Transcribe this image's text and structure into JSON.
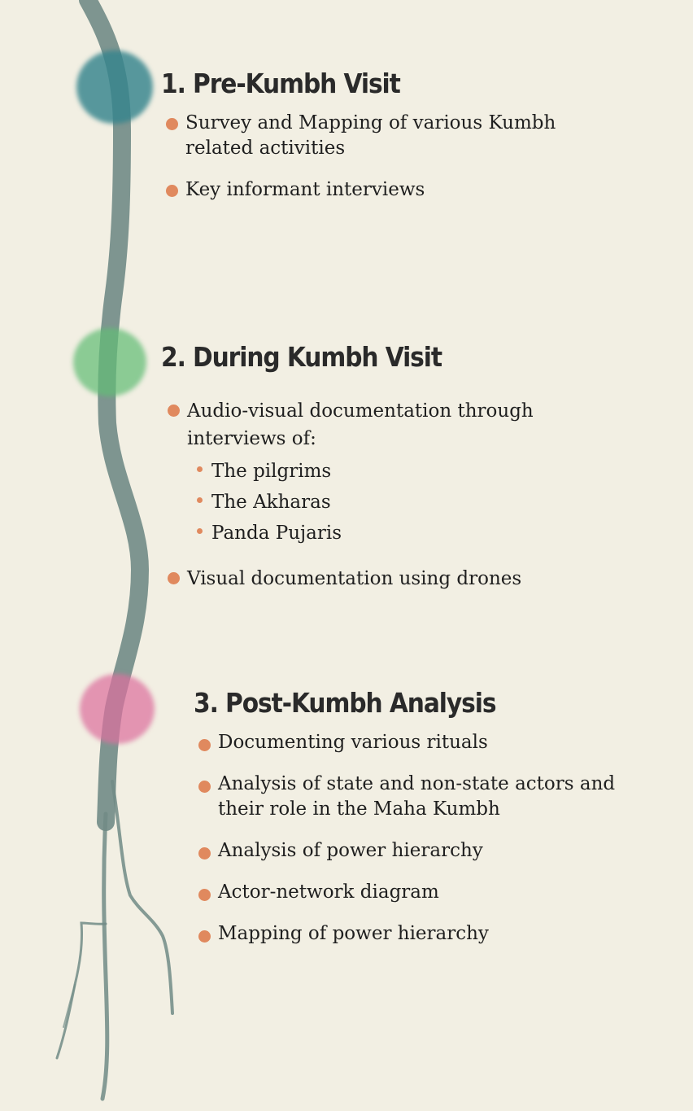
{
  "colors": {
    "background": "#f2efe3",
    "river": "#718b86",
    "bullet": "#e0895e",
    "stage1": "#35848c",
    "stage2": "#62bc76",
    "stage3": "#dc709e"
  },
  "sections": [
    {
      "title": "1. Pre-Kumbh Visit",
      "items": [
        {
          "line1": "Survey and Mapping of various Kumbh",
          "line2": "related activities"
        },
        {
          "line1": "Key informant interviews"
        }
      ]
    },
    {
      "title": "2. During Kumbh Visit",
      "items": [
        {
          "line1": "Audio-visual documentation through",
          "line2": "interviews of:",
          "sub": [
            "The pilgrims",
            "The Akharas",
            "Panda Pujaris"
          ]
        },
        {
          "line1": "Visual documentation using drones"
        }
      ]
    },
    {
      "title": "3. Post-Kumbh Analysis",
      "items": [
        {
          "line1": "Documenting various rituals"
        },
        {
          "line1": "Analysis of state and non-state actors and",
          "line2": "their role in the Maha Kumbh"
        },
        {
          "line1": "Analysis of power hierarchy"
        },
        {
          "line1": "Actor-network diagram"
        },
        {
          "line1": "Mapping of power hierarchy"
        }
      ]
    }
  ]
}
